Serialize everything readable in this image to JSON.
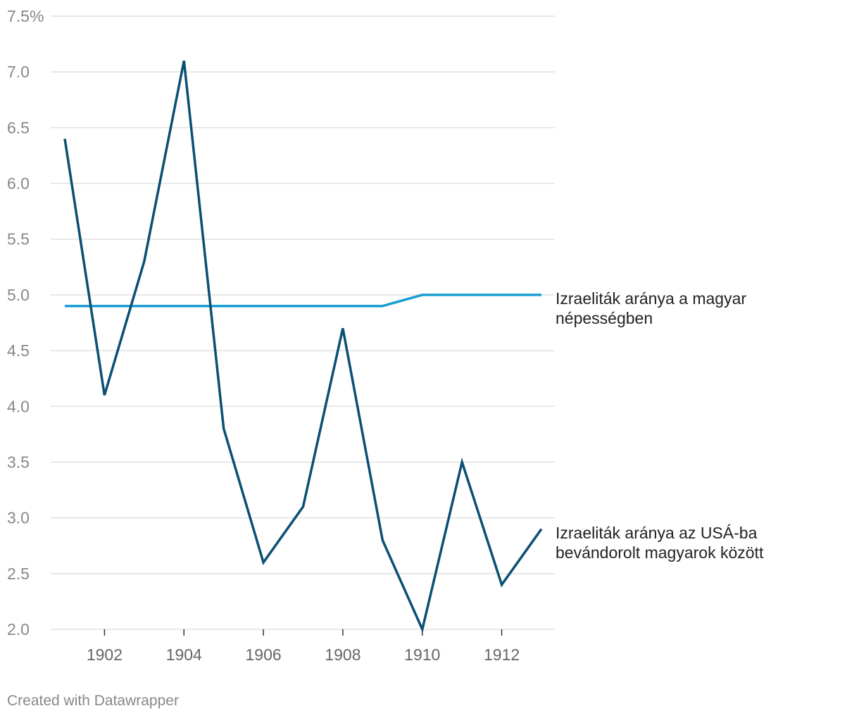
{
  "chart_data": {
    "type": "line",
    "title": "",
    "xlabel": "",
    "ylabel": "",
    "ylim": [
      2.0,
      7.5
    ],
    "xlim": [
      1901,
      1913
    ],
    "y_ticks": [
      {
        "value": 7.5,
        "label": "7.5%"
      },
      {
        "value": 7.0,
        "label": "7.0"
      },
      {
        "value": 6.5,
        "label": "6.5"
      },
      {
        "value": 6.0,
        "label": "6.0"
      },
      {
        "value": 5.5,
        "label": "5.5"
      },
      {
        "value": 5.0,
        "label": "5.0"
      },
      {
        "value": 4.5,
        "label": "4.5"
      },
      {
        "value": 4.0,
        "label": "4.0"
      },
      {
        "value": 3.5,
        "label": "3.5"
      },
      {
        "value": 3.0,
        "label": "3.0"
      },
      {
        "value": 2.5,
        "label": "2.5"
      },
      {
        "value": 2.0,
        "label": "2.0"
      }
    ],
    "x_ticks": [
      {
        "value": 1902,
        "label": "1902"
      },
      {
        "value": 1904,
        "label": "1904"
      },
      {
        "value": 1906,
        "label": "1906"
      },
      {
        "value": 1908,
        "label": "1908"
      },
      {
        "value": 1910,
        "label": "1910"
      },
      {
        "value": 1912,
        "label": "1912"
      }
    ],
    "x": [
      1901,
      1902,
      1903,
      1904,
      1905,
      1906,
      1907,
      1908,
      1909,
      1910,
      1911,
      1912,
      1913
    ],
    "series": [
      {
        "name": "Izraeliták aránya a magyar népességben",
        "label_lines": [
          "Izraeliták aránya a magyar",
          "népességben"
        ],
        "color": "#1a9ed1",
        "values": [
          4.9,
          4.9,
          4.9,
          4.9,
          4.9,
          4.9,
          4.9,
          4.9,
          4.9,
          5.0,
          5.0,
          5.0,
          5.0
        ]
      },
      {
        "name": "Izraeliták aránya az USÁ-ba bevándorolt magyarok között",
        "label_lines": [
          "Izraeliták aránya az USÁ-ba",
          "bevándorolt magyarok között"
        ],
        "color": "#0b4f73",
        "values": [
          6.4,
          4.1,
          5.3,
          7.1,
          3.8,
          2.6,
          3.1,
          4.7,
          2.8,
          2.0,
          3.5,
          2.4,
          2.9
        ]
      }
    ]
  },
  "footer": {
    "credit": "Created with Datawrapper"
  }
}
